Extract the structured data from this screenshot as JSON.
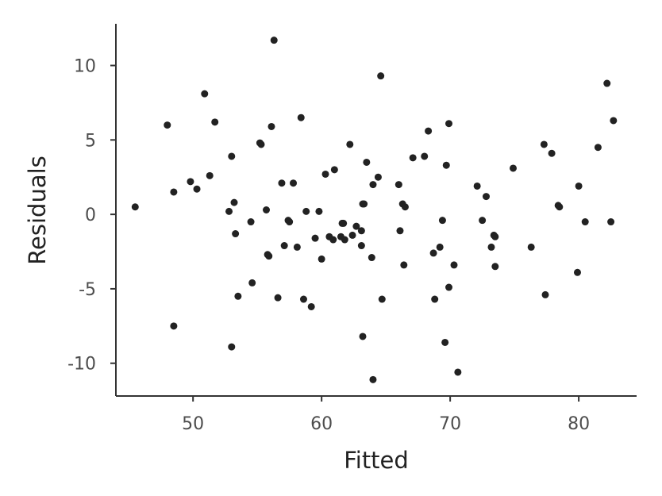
{
  "chart_data": {
    "type": "scatter",
    "title": "",
    "xlabel": "Fitted",
    "ylabel": "Residuals",
    "xlim": [
      44,
      84.5
    ],
    "ylim": [
      -12.2,
      12.8
    ],
    "xticks": [
      50,
      60,
      70,
      80
    ],
    "yticks": [
      -10,
      -5,
      0,
      5,
      10
    ],
    "xtick_labels": [
      "50",
      "60",
      "70",
      "80"
    ],
    "ytick_labels": [
      "-10",
      "-5",
      "0",
      "5",
      "10"
    ],
    "grid": false,
    "point_color": "#222222",
    "points": [
      [
        45.5,
        0.5
      ],
      [
        48.0,
        6.0
      ],
      [
        48.5,
        1.5
      ],
      [
        48.5,
        -7.5
      ],
      [
        49.8,
        2.2
      ],
      [
        50.3,
        1.7
      ],
      [
        50.9,
        8.1
      ],
      [
        51.3,
        2.6
      ],
      [
        51.7,
        6.2
      ],
      [
        52.8,
        0.2
      ],
      [
        53.0,
        3.9
      ],
      [
        53.0,
        -8.9
      ],
      [
        53.2,
        0.8
      ],
      [
        53.3,
        -1.3
      ],
      [
        53.5,
        -5.5
      ],
      [
        54.5,
        -0.5
      ],
      [
        54.6,
        -4.6
      ],
      [
        55.2,
        4.8
      ],
      [
        55.3,
        4.7
      ],
      [
        55.7,
        0.3
      ],
      [
        55.8,
        -2.7
      ],
      [
        55.9,
        -2.8
      ],
      [
        56.1,
        5.9
      ],
      [
        56.3,
        11.7
      ],
      [
        56.6,
        -5.6
      ],
      [
        56.9,
        2.1
      ],
      [
        57.1,
        -2.1
      ],
      [
        57.4,
        -0.4
      ],
      [
        57.5,
        -0.5
      ],
      [
        57.8,
        2.1
      ],
      [
        58.1,
        -2.2
      ],
      [
        58.4,
        6.5
      ],
      [
        58.6,
        -5.7
      ],
      [
        58.8,
        0.2
      ],
      [
        59.2,
        -6.2
      ],
      [
        59.5,
        -1.6
      ],
      [
        59.8,
        0.2
      ],
      [
        60.0,
        -3.0
      ],
      [
        60.3,
        2.7
      ],
      [
        60.6,
        -1.5
      ],
      [
        60.9,
        -1.7
      ],
      [
        61.0,
        3.0
      ],
      [
        61.5,
        -1.5
      ],
      [
        61.6,
        -0.6
      ],
      [
        61.7,
        -0.6
      ],
      [
        61.8,
        -1.7
      ],
      [
        62.2,
        4.7
      ],
      [
        62.4,
        -1.4
      ],
      [
        62.7,
        -0.8
      ],
      [
        63.1,
        -2.1
      ],
      [
        63.1,
        -1.1
      ],
      [
        63.2,
        0.7
      ],
      [
        63.3,
        0.7
      ],
      [
        63.5,
        3.5
      ],
      [
        63.9,
        -2.9
      ],
      [
        64.0,
        2.0
      ],
      [
        64.0,
        -11.1
      ],
      [
        64.4,
        2.5
      ],
      [
        64.6,
        9.3
      ],
      [
        64.7,
        -5.7
      ],
      [
        66.0,
        2.0
      ],
      [
        66.1,
        -1.1
      ],
      [
        66.3,
        0.7
      ],
      [
        66.4,
        -3.4
      ],
      [
        66.5,
        0.5
      ],
      [
        67.1,
        3.8
      ],
      [
        68.0,
        3.9
      ],
      [
        68.3,
        5.6
      ],
      [
        68.7,
        -2.6
      ],
      [
        68.8,
        -5.7
      ],
      [
        69.2,
        -2.2
      ],
      [
        69.4,
        -0.4
      ],
      [
        69.6,
        -8.6
      ],
      [
        69.7,
        3.3
      ],
      [
        69.9,
        6.1
      ],
      [
        69.9,
        -4.9
      ],
      [
        70.3,
        -3.4
      ],
      [
        70.6,
        -10.6
      ],
      [
        72.1,
        1.9
      ],
      [
        72.5,
        -0.4
      ],
      [
        72.8,
        1.2
      ],
      [
        73.2,
        -2.2
      ],
      [
        73.4,
        -1.4
      ],
      [
        73.5,
        -1.5
      ],
      [
        73.5,
        -3.5
      ],
      [
        74.9,
        3.1
      ],
      [
        76.3,
        -2.2
      ],
      [
        77.3,
        4.7
      ],
      [
        77.4,
        -5.4
      ],
      [
        77.9,
        4.1
      ],
      [
        78.4,
        0.6
      ],
      [
        78.5,
        0.5
      ],
      [
        79.9,
        -3.9
      ],
      [
        80.0,
        1.9
      ],
      [
        80.5,
        -0.5
      ],
      [
        81.5,
        4.5
      ],
      [
        82.2,
        8.8
      ],
      [
        82.5,
        -0.5
      ],
      [
        82.7,
        6.3
      ],
      [
        63.2,
        -8.2
      ]
    ]
  }
}
